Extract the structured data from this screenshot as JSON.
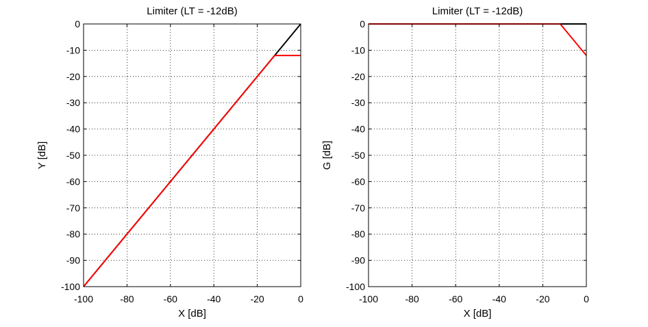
{
  "figure": {
    "background": "#ffffff"
  },
  "chart_data": [
    {
      "type": "line",
      "title": "Limiter (LT = -12dB)",
      "xlabel": "X [dB]",
      "ylabel": "Y [dB]",
      "xlim": [
        -100,
        0
      ],
      "ylim": [
        -100,
        0
      ],
      "xticks": [
        -100,
        -80,
        -60,
        -40,
        -20,
        0
      ],
      "yticks": [
        0,
        -10,
        -20,
        -30,
        -40,
        -50,
        -60,
        -70,
        -80,
        -90,
        -100
      ],
      "grid": true,
      "grid_style": "dotted",
      "series": [
        {
          "color": "#000000",
          "x": [
            -100,
            0
          ],
          "y": [
            -100,
            0
          ]
        },
        {
          "color": "#ff0000",
          "x": [
            -100,
            -12,
            0
          ],
          "y": [
            -100,
            -12,
            -12
          ]
        }
      ]
    },
    {
      "type": "line",
      "title": "Limiter (LT = -12dB)",
      "xlabel": "X [dB]",
      "ylabel": "G [dB]",
      "xlim": [
        -100,
        0
      ],
      "ylim": [
        -100,
        0
      ],
      "xticks": [
        -100,
        -80,
        -60,
        -40,
        -20,
        0
      ],
      "yticks": [
        0,
        -10,
        -20,
        -30,
        -40,
        -50,
        -60,
        -70,
        -80,
        -90,
        -100
      ],
      "grid": true,
      "grid_style": "dotted",
      "series": [
        {
          "color": "#000000",
          "x": [
            -100,
            0
          ],
          "y": [
            0,
            0
          ]
        },
        {
          "color": "#ff0000",
          "x": [
            -100,
            -12,
            0
          ],
          "y": [
            0,
            0,
            -12
          ]
        }
      ]
    }
  ]
}
